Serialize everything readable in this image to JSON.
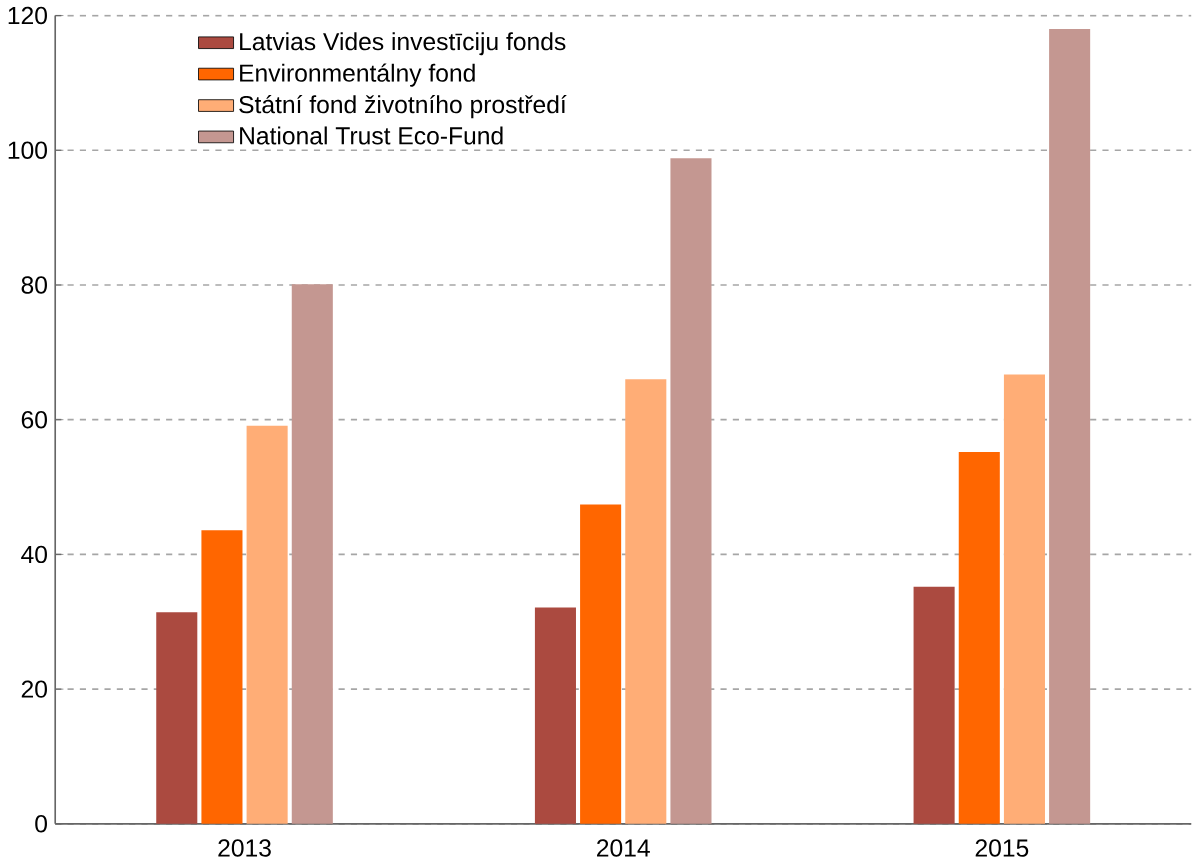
{
  "chart_data": {
    "type": "bar",
    "categories": [
      "2013",
      "2014",
      "2015"
    ],
    "series": [
      {
        "name": "Latvias Vides investīciju fonds",
        "color": "#ab4a40",
        "values": [
          31.4,
          32.1,
          35.2
        ]
      },
      {
        "name": "Environmentálny fond",
        "color": "#ff6600",
        "values": [
          43.6,
          47.4,
          55.2
        ]
      },
      {
        "name": "Státní fond životního prostředí",
        "color": "#ffad76",
        "values": [
          59.1,
          66.0,
          66.7
        ]
      },
      {
        "name": "National Trust Eco-Fund",
        "color": "#c49791",
        "values": [
          80.1,
          98.8,
          118.0
        ]
      }
    ],
    "ylim": [
      0,
      120
    ],
    "yticks": [
      0,
      20,
      40,
      60,
      80,
      100,
      120
    ],
    "grid": "y",
    "legend": "top left"
  }
}
